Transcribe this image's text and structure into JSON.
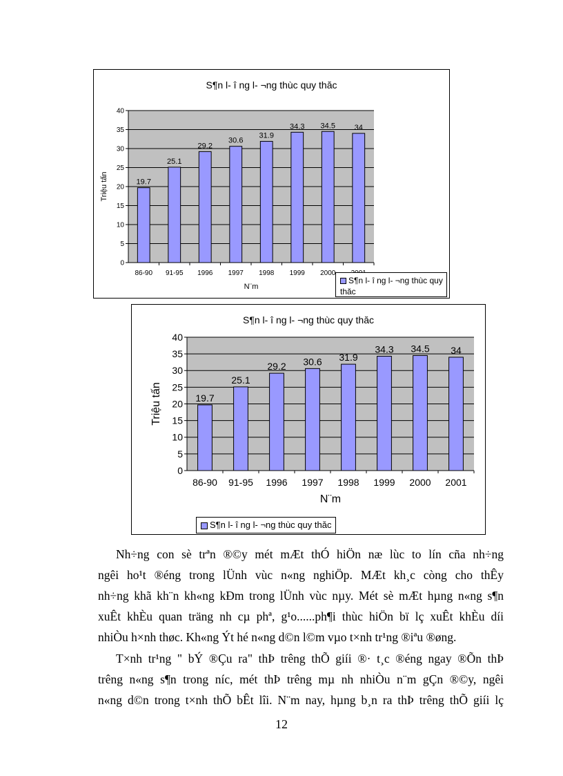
{
  "chart_data": [
    {
      "type": "bar",
      "title": "S¶n l- î ng l- ¬ng thùc quy thăc",
      "xlabel": "N¨m",
      "ylabel": "Triệu tấn",
      "categories": [
        "86-90",
        "91-95",
        "1996",
        "1997",
        "1998",
        "1999",
        "2000",
        "2001"
      ],
      "values": [
        19.7,
        25.1,
        29.2,
        30.6,
        31.9,
        34.3,
        34.5,
        34
      ],
      "yticks": [
        0,
        5,
        10,
        15,
        20,
        25,
        30,
        35,
        40
      ],
      "ylim": [
        0,
        40
      ],
      "grid": true,
      "legend": "bottom-right",
      "legend_label": "S¶n l- î ng l- ¬ng thùc quy thăc",
      "bar_color": "#9999ff",
      "plot_bg": "#c0c0c0"
    },
    {
      "type": "bar",
      "title": "S¶n l- î ng l- ¬ng thùc quy thăc",
      "xlabel": "N¨m",
      "ylabel": "Triệu tấn",
      "categories": [
        "86-90",
        "91-95",
        "1996",
        "1997",
        "1998",
        "1999",
        "2000",
        "2001"
      ],
      "values": [
        19.7,
        25.1,
        29.2,
        30.6,
        31.9,
        34.3,
        34.5,
        34
      ],
      "yticks": [
        0,
        5,
        10,
        15,
        20,
        25,
        30,
        35,
        40
      ],
      "ylim": [
        0,
        40
      ],
      "grid": true,
      "legend": "bottom-left",
      "legend_label": "S¶n l- î ng l- ¬ng thùc quy thăc",
      "bar_color": "#9999ff",
      "plot_bg": "#c0c0c0"
    }
  ],
  "body": {
    "lines": [
      "Nh÷ng con sè trªn ®©y mét mÆt thÓ hiÖn næ lùc to lín cña nh÷ng",
      "ngêi ho¹t ®éng trong lÜnh vùc n«ng nghiÖp. MÆt kh¸c còng cho thÊy",
      "nh÷ng khã kh¨n kh«ng kÐm trong lÜnh vùc nµy. Mét sè mÆt hµng n«ng s¶n",
      "xuÊt khÈu quan träng nh cµ phª, g¹o......ph¶i thùc hiÖn bï lç xuÊt khÈu díi",
      "nhiÒu h×nh thøc. Kh«ng Ýt hé n«ng d©n l©m vµo t×nh tr¹ng ®iªu ®øng.",
      "T×nh tr¹ng \" bÝ ®Çu ra\" thÞ trêng thÕ giíi ®· t¸c ®éng ngay ®Õn thÞ",
      "trêng n«ng s¶n trong níc, mét thÞ trêng mµ nh nhiÒu n¨m gÇn ®©y, ngêi",
      "n«ng d©n trong t×nh thÕ bÊt lîi. N¨m nay, hµng b¸n ra thÞ trêng thÕ giíi lç"
    ],
    "page_number": "12"
  }
}
